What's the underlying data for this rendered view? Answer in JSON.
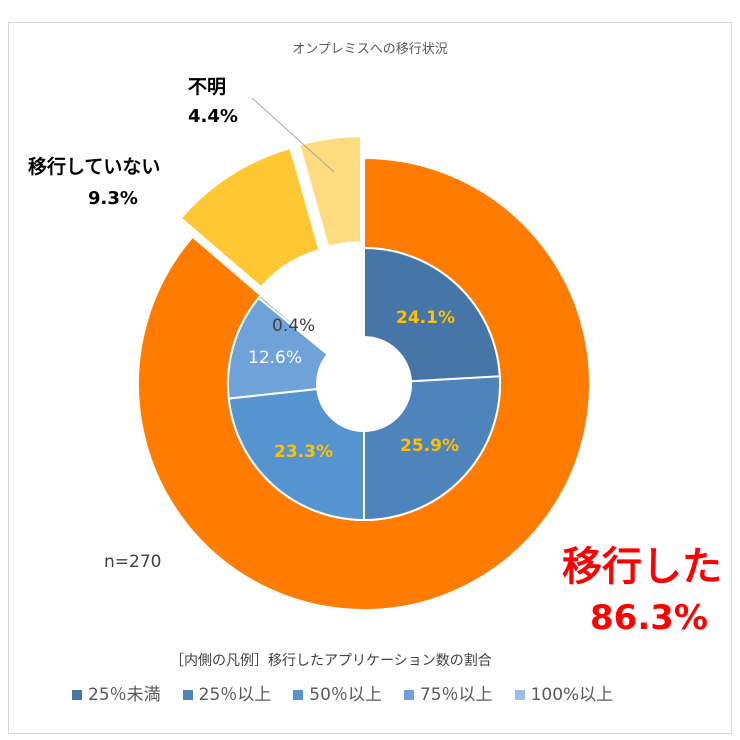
{
  "chart_data": {
    "type": "pie",
    "title": "オンプレミスへの移行状況",
    "note": "n=270",
    "outer": {
      "categories": [
        "移行した",
        "移行していない",
        "不明"
      ],
      "values": [
        86.3,
        9.3,
        4.4
      ],
      "labels": [
        "86.3%",
        "9.3%",
        "4.4%"
      ],
      "colors": [
        "#FF7C00",
        "#FFC833",
        "#FFDB80"
      ]
    },
    "inner": {
      "legend_title": "［内側の凡例］移行したアプリケーション数の割合",
      "categories": [
        "25％未満",
        "25％以上",
        "50％以上",
        "75％以上",
        "100%以上"
      ],
      "values": [
        24.1,
        25.9,
        23.3,
        12.6,
        0.4
      ],
      "labels": [
        "24.1%",
        "25.9%",
        "23.3%",
        "12.6%",
        "0.4%"
      ],
      "colors": [
        "#4676A8",
        "#4D84BC",
        "#5594CE",
        "#6EA2D8",
        "#9CBDE3"
      ]
    }
  }
}
